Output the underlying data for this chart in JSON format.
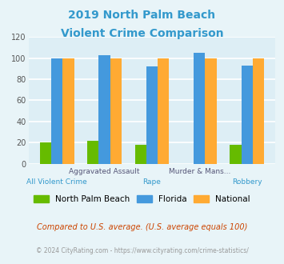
{
  "title_line1": "2019 North Palm Beach",
  "title_line2": "Violent Crime Comparison",
  "title_color": "#3399cc",
  "npb_values": [
    20,
    22,
    18,
    0,
    18
  ],
  "florida_values": [
    100,
    103,
    92,
    105,
    93
  ],
  "national_values": [
    100,
    100,
    100,
    100,
    100
  ],
  "npb_color": "#66bb00",
  "florida_color": "#4499dd",
  "national_color": "#ffaa33",
  "ylim": [
    0,
    120
  ],
  "yticks": [
    0,
    20,
    40,
    60,
    80,
    100,
    120
  ],
  "background_color": "#e8f4f8",
  "plot_bg_color": "#ddeef5",
  "grid_color": "#ffffff",
  "legend_labels": [
    "North Palm Beach",
    "Florida",
    "National"
  ],
  "top_labels": [
    "",
    "Aggravated Assault",
    "",
    "Murder & Mans...",
    ""
  ],
  "bottom_labels": [
    "All Violent Crime",
    "",
    "Rape",
    "",
    "Robbery"
  ],
  "top_label_color": "#555577",
  "bottom_label_color": "#3399cc",
  "footnote1": "Compared to U.S. average. (U.S. average equals 100)",
  "footnote2": "© 2024 CityRating.com - https://www.cityrating.com/crime-statistics/",
  "footnote1_color": "#cc4400",
  "footnote2_color": "#999999"
}
